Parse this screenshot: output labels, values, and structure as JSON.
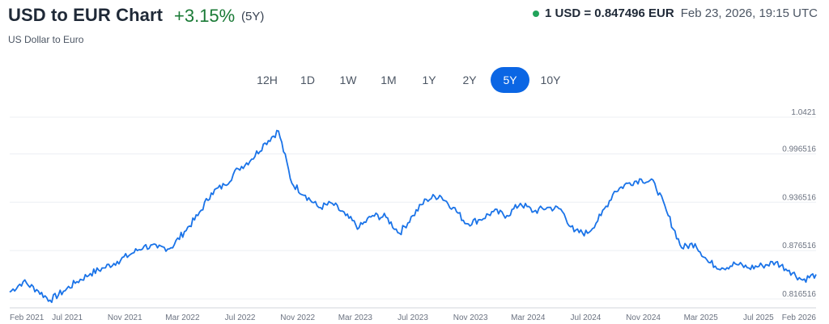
{
  "header": {
    "title": "USD to EUR Chart",
    "change": "+3.15%",
    "period": "(5Y)",
    "subtitle": "US Dollar to Euro",
    "rate": "1 USD = 0.847496 EUR",
    "timestamp": "Feb 23, 2026, 19:15 UTC",
    "live_color": "#22a35a"
  },
  "ranges": {
    "options": [
      "12H",
      "1D",
      "1W",
      "1M",
      "1Y",
      "2Y",
      "5Y",
      "10Y"
    ],
    "selected": "5Y"
  },
  "chart_data": {
    "type": "line",
    "title": "",
    "xlabel": "",
    "ylabel": "",
    "y_ticks": [
      1.0421,
      0.996516,
      0.936516,
      0.876516,
      0.816516
    ],
    "ylim": [
      0.8115,
      1.0421
    ],
    "x_ticks": [
      "Feb 2021",
      "Jul 2021",
      "Nov 2021",
      "Mar 2022",
      "Jul 2022",
      "Nov 2022",
      "Mar 2023",
      "Jul 2023",
      "Nov 2023",
      "Mar 2024",
      "Jul 2024",
      "Nov 2024",
      "Mar 2025",
      "Jul 2025",
      "Feb 2026"
    ],
    "grid": "horizontal",
    "line_color": "#1a73e8",
    "series": [
      {
        "x": [
          "2021-02",
          "2021-03",
          "2021-04",
          "2021-05",
          "2021-06",
          "2021-07",
          "2021-08",
          "2021-09",
          "2021-10",
          "2021-11",
          "2021-12",
          "2022-01",
          "2022-02",
          "2022-03",
          "2022-04",
          "2022-05",
          "2022-06",
          "2022-07",
          "2022-08",
          "2022-09",
          "2022-10",
          "2022-11",
          "2022-12",
          "2023-01",
          "2023-02",
          "2023-03",
          "2023-04",
          "2023-05",
          "2023-06",
          "2023-07",
          "2023-08",
          "2023-09",
          "2023-10",
          "2023-11",
          "2023-12",
          "2024-01",
          "2024-02",
          "2024-03",
          "2024-04",
          "2024-05",
          "2024-06",
          "2024-07",
          "2024-08",
          "2024-09",
          "2024-10",
          "2024-11",
          "2024-12",
          "2025-01",
          "2025-02",
          "2025-03",
          "2025-04",
          "2025-05",
          "2025-06",
          "2025-07",
          "2025-08",
          "2025-09",
          "2025-10",
          "2025-11",
          "2025-12",
          "2026-01",
          "2026-02"
        ],
        "values": [
          0.825,
          0.838,
          0.828,
          0.815,
          0.826,
          0.838,
          0.848,
          0.855,
          0.863,
          0.872,
          0.882,
          0.88,
          0.88,
          0.9,
          0.92,
          0.948,
          0.958,
          0.978,
          0.99,
          1.01,
          1.025,
          0.96,
          0.945,
          0.93,
          0.935,
          0.92,
          0.905,
          0.92,
          0.918,
          0.898,
          0.92,
          0.94,
          0.945,
          0.93,
          0.91,
          0.915,
          0.925,
          0.92,
          0.935,
          0.925,
          0.93,
          0.928,
          0.9,
          0.898,
          0.92,
          0.95,
          0.96,
          0.965,
          0.96,
          0.92,
          0.88,
          0.885,
          0.862,
          0.855,
          0.86,
          0.855,
          0.858,
          0.862,
          0.852,
          0.84,
          0.847
        ]
      }
    ]
  }
}
